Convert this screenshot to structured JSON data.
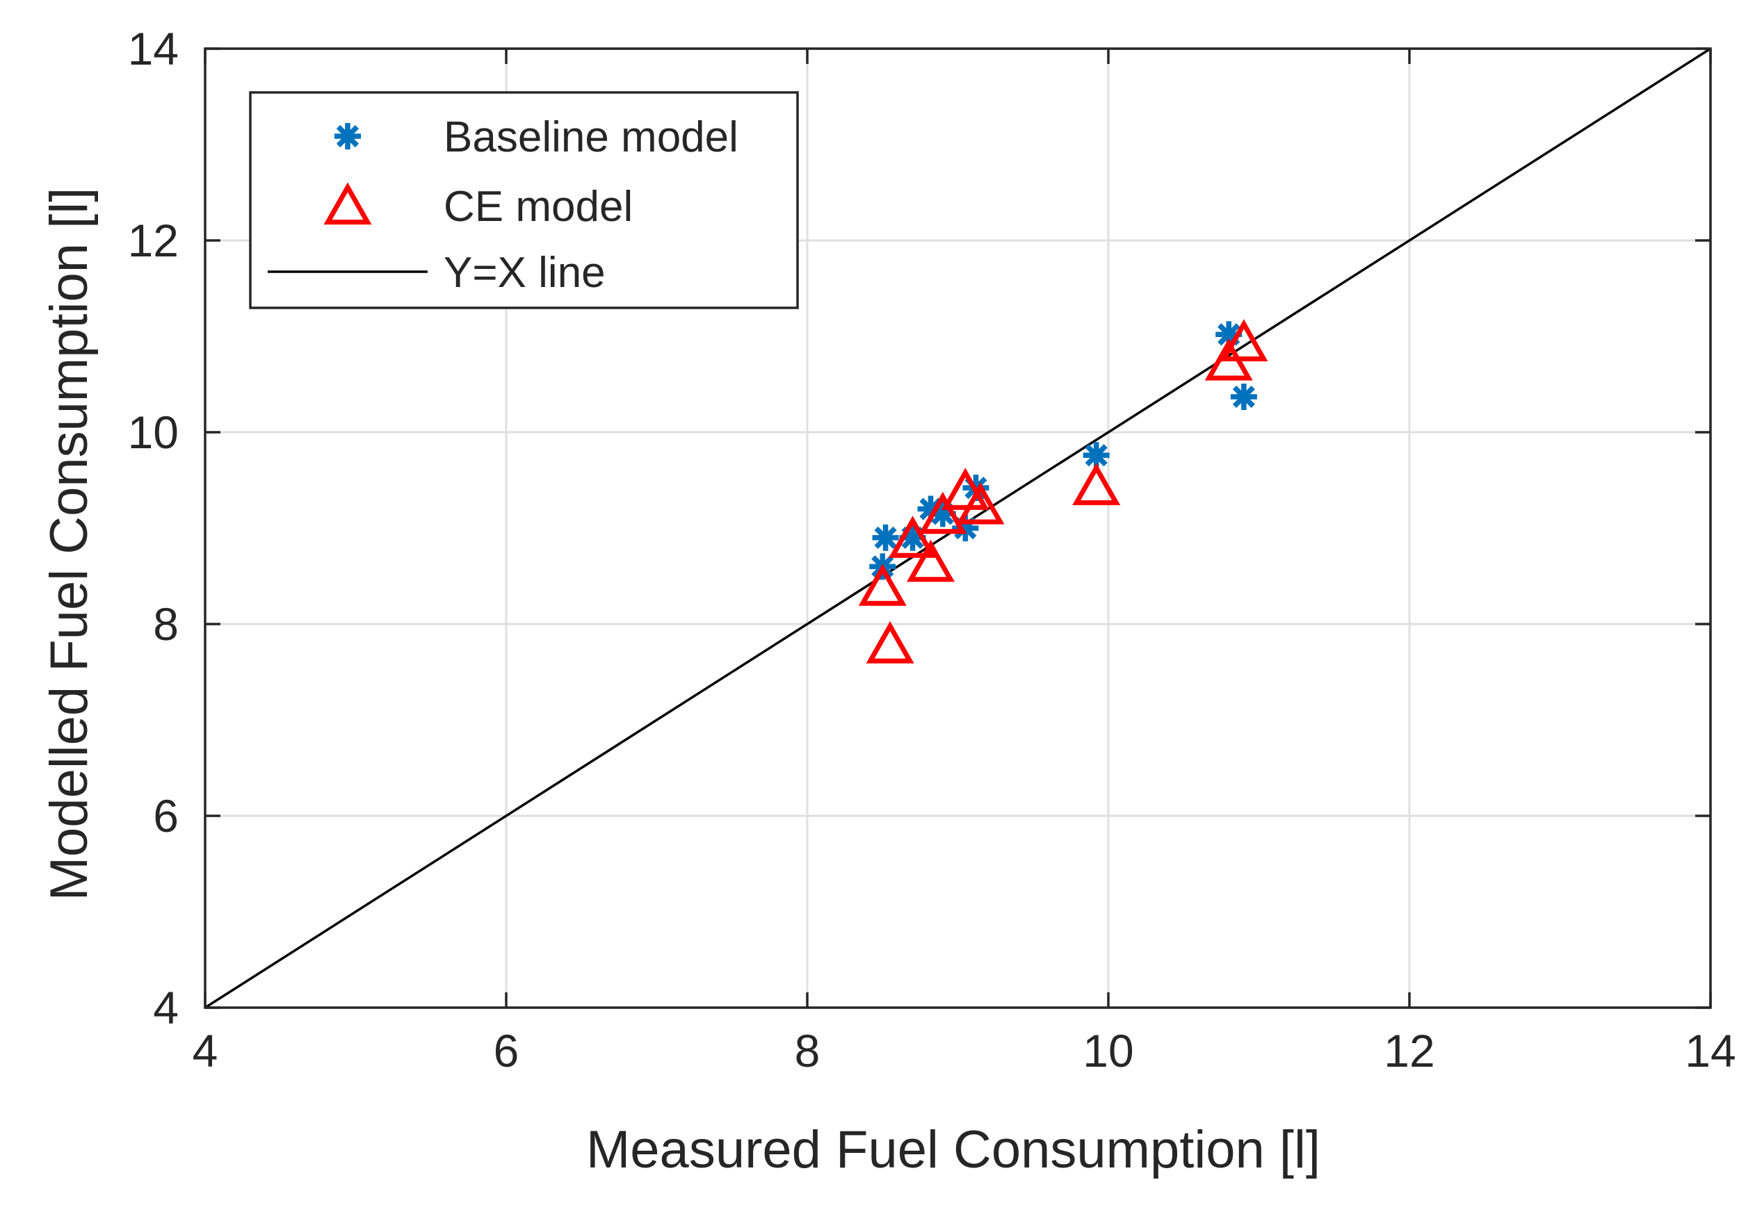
{
  "chart_data": {
    "type": "scatter",
    "title": "",
    "xlabel": "Measured Fuel Consumption [l]",
    "ylabel": "Modelled Fuel Consumption [l]",
    "xlim": [
      4,
      14
    ],
    "ylim": [
      4,
      14
    ],
    "xticks": [
      4,
      6,
      8,
      10,
      12,
      14
    ],
    "yticks": [
      4,
      6,
      8,
      10,
      12,
      14
    ],
    "xtick_labels": [
      "4",
      "6",
      "8",
      "10",
      "12",
      "14"
    ],
    "ytick_labels": [
      "4",
      "6",
      "8",
      "10",
      "12",
      "14"
    ],
    "grid": true,
    "legend_position": "top-left",
    "series": [
      {
        "name": "Baseline model",
        "marker": "asterisk",
        "color": "#0072BD",
        "x": [
          8.5,
          8.52,
          8.7,
          8.82,
          8.9,
          9.05,
          9.12,
          9.92,
          10.8,
          10.9
        ],
        "y": [
          8.6,
          8.9,
          8.9,
          9.2,
          9.15,
          9.0,
          9.42,
          9.76,
          11.02,
          10.37
        ]
      },
      {
        "name": "CE model",
        "marker": "triangle",
        "color": "#FF0000",
        "x": [
          8.5,
          8.55,
          8.7,
          8.82,
          8.9,
          9.05,
          9.15,
          9.92,
          10.8,
          10.9
        ],
        "y": [
          8.35,
          7.75,
          8.85,
          8.6,
          9.1,
          9.35,
          9.2,
          9.4,
          10.7,
          10.9
        ]
      },
      {
        "name": "Y=X line",
        "type": "line",
        "color": "#000000",
        "x": [
          4,
          14
        ],
        "y": [
          4,
          14
        ]
      }
    ]
  }
}
